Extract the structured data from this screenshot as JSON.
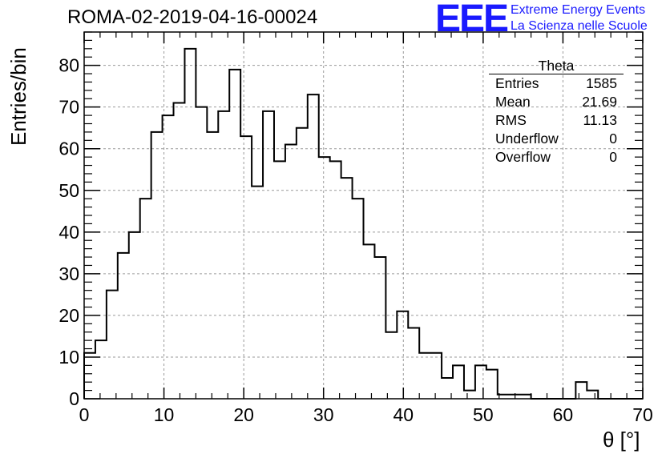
{
  "header": {
    "run_title": "ROMA-02-2019-04-16-00024",
    "logo_text": "EEE",
    "logo_line1": "Extreme Energy Events",
    "logo_line2": "La Scienza nelle Scuole"
  },
  "stats_box": {
    "title": "Theta",
    "rows": [
      {
        "label": "Entries",
        "value": "1585"
      },
      {
        "label": "Mean",
        "value": "21.69"
      },
      {
        "label": "RMS",
        "value": "11.13"
      },
      {
        "label": "Underflow",
        "value": "0"
      },
      {
        "label": "Overflow",
        "value": "0"
      }
    ]
  },
  "colors": {
    "logo": "#1a1aff",
    "line": "#000000",
    "grid": "#9a9a9a"
  },
  "chart_data": {
    "type": "bar",
    "subtype": "step-histogram",
    "title": "ROMA-02-2019-04-16-00024",
    "xlabel": "θ [°]",
    "ylabel": "Entries/bin",
    "xlim": [
      0,
      70
    ],
    "ylim": [
      0,
      88
    ],
    "bin_width": 1.4,
    "x_ticks": [
      0,
      10,
      20,
      30,
      40,
      50,
      60,
      70
    ],
    "y_ticks": [
      0,
      10,
      20,
      30,
      40,
      50,
      60,
      70,
      80
    ],
    "grid": true,
    "values": [
      11,
      14,
      26,
      35,
      40,
      48,
      64,
      68,
      71,
      84,
      70,
      64,
      69,
      79,
      63,
      51,
      69,
      57,
      61,
      65,
      73,
      58,
      57,
      53,
      48,
      37,
      34,
      16,
      21,
      17,
      11,
      11,
      5,
      8,
      2,
      8,
      7,
      1,
      1,
      1,
      0,
      0,
      0,
      0,
      4,
      2,
      0,
      0,
      0,
      0
    ]
  }
}
